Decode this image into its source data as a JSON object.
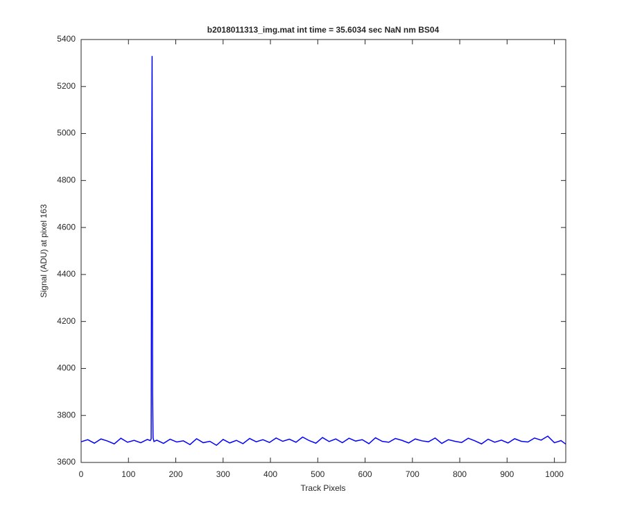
{
  "chart_data": {
    "type": "line",
    "title": "b2018011313_img.mat int time = 35.6034 sec  NaN nm BS04",
    "x_label": "Track Pixels",
    "y_label": "Signal (ADU) at pixel 163",
    "x": [
      0,
      14,
      28,
      42,
      56,
      70,
      84,
      98,
      112,
      126,
      140,
      146,
      148,
      149,
      150,
      151,
      152,
      154,
      160,
      174,
      188,
      202,
      216,
      230,
      244,
      258,
      272,
      286,
      300,
      314,
      328,
      342,
      356,
      370,
      384,
      398,
      412,
      426,
      440,
      454,
      468,
      482,
      496,
      510,
      524,
      538,
      552,
      566,
      580,
      594,
      608,
      622,
      636,
      650,
      664,
      678,
      692,
      706,
      720,
      734,
      748,
      762,
      776,
      790,
      804,
      818,
      832,
      846,
      860,
      874,
      888,
      902,
      916,
      930,
      944,
      958,
      972,
      986,
      1000,
      1014,
      1024
    ],
    "values": [
      3688,
      3697,
      3682,
      3700,
      3691,
      3679,
      3703,
      3686,
      3694,
      3684,
      3698,
      3693,
      3700,
      4800,
      5330,
      3900,
      3705,
      3689,
      3695,
      3681,
      3699,
      3687,
      3692,
      3676,
      3701,
      3684,
      3690,
      3673,
      3698,
      3683,
      3694,
      3680,
      3702,
      3688,
      3697,
      3685,
      3704,
      3690,
      3699,
      3686,
      3708,
      3693,
      3682,
      3706,
      3689,
      3700,
      3684,
      3703,
      3691,
      3697,
      3680,
      3705,
      3690,
      3686,
      3702,
      3694,
      3683,
      3700,
      3692,
      3688,
      3704,
      3681,
      3697,
      3690,
      3685,
      3703,
      3692,
      3679,
      3699,
      3686,
      3695,
      3683,
      3701,
      3690,
      3687,
      3704,
      3695,
      3712,
      3684,
      3693,
      3678
    ],
    "color": "#0000ff",
    "xlim": [
      0,
      1024
    ],
    "xticks": [
      0,
      100,
      200,
      300,
      400,
      500,
      600,
      700,
      800,
      900,
      1000
    ],
    "ylim": [
      3600,
      5400
    ],
    "yticks": [
      3600,
      3800,
      4000,
      4200,
      4400,
      4600,
      4800,
      5000,
      5200,
      5400
    ],
    "grid": false
  }
}
